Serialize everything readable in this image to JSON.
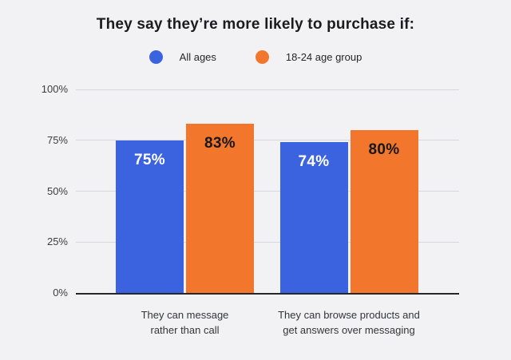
{
  "title": "They say they’re more likely to purchase if:",
  "legend": {
    "items": [
      {
        "label": "All ages",
        "color": "#3b63e0"
      },
      {
        "label": "18-24 age group",
        "color": "#f2772c"
      }
    ]
  },
  "chart_data": {
    "type": "bar",
    "title": "They say they’re more likely to purchase if:",
    "categories": [
      "They can message rather than call",
      "They can browse products and get answers over messaging"
    ],
    "category_lines": [
      [
        "They can message",
        "rather than call"
      ],
      [
        "They can browse products and",
        "get answers over messaging"
      ]
    ],
    "series": [
      {
        "name": "All ages",
        "color": "#3b63e0",
        "values": [
          75,
          74
        ],
        "value_labels": [
          "75%",
          "74%"
        ],
        "label_color": "#ffffff"
      },
      {
        "name": "18-24 age group",
        "color": "#f2772c",
        "values": [
          83,
          80
        ],
        "value_labels": [
          "83%",
          "80%"
        ],
        "label_color": "#17171b"
      }
    ],
    "y_ticks": [
      {
        "label": "0%",
        "value": 0
      },
      {
        "label": "25%",
        "value": 25
      },
      {
        "label": "50%",
        "value": 50
      },
      {
        "label": "75%",
        "value": 75
      },
      {
        "label": "100%",
        "value": 100
      }
    ],
    "ylim": [
      0,
      100
    ],
    "grid": true,
    "legend_position": "top"
  },
  "colors": {
    "background": "#f2f2f4",
    "gridline": "#d7d8dd",
    "axis_line": "#27272a",
    "title_text": "#1b1b20",
    "tick_text": "#3c3d43",
    "category_text": "#34353b"
  }
}
